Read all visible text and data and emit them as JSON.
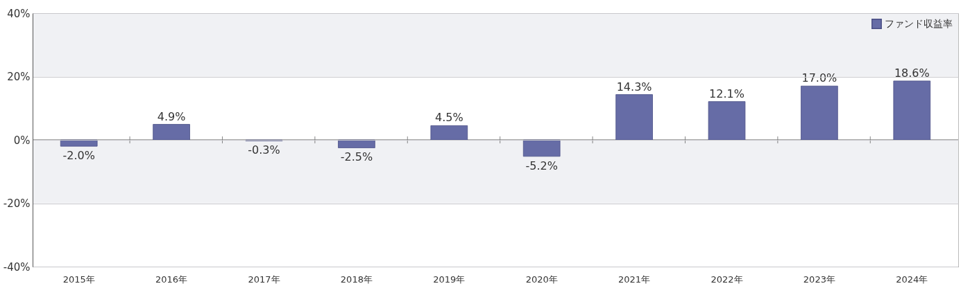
{
  "chart_data": {
    "type": "bar",
    "categories": [
      "2015年",
      "2016年",
      "2017年",
      "2018年",
      "2019年",
      "2020年",
      "2021年",
      "2022年",
      "2023年",
      "2024年"
    ],
    "series": [
      {
        "name": "ファンド収益率",
        "color": "#666ca6",
        "values": [
          -2.0,
          4.9,
          -0.3,
          -2.5,
          4.5,
          -5.2,
          14.3,
          12.1,
          17.0,
          18.6
        ]
      }
    ],
    "value_labels": [
      "-2.0%",
      "4.9%",
      "-0.3%",
      "-2.5%",
      "4.5%",
      "-5.2%",
      "14.3%",
      "12.1%",
      "17.0%",
      "18.6%"
    ],
    "ylim": [
      -40,
      40
    ],
    "yticks": [
      {
        "value": -40,
        "label": "-40%"
      },
      {
        "value": -20,
        "label": "-20%"
      },
      {
        "value": 0,
        "label": "0%"
      },
      {
        "value": 20,
        "label": "20%"
      },
      {
        "value": 40,
        "label": "40%"
      }
    ],
    "bands": [
      {
        "axis": "y",
        "from": 20,
        "to": 40,
        "color": "#f0f1f4"
      },
      {
        "axis": "y",
        "from": -20,
        "to": 0,
        "color": "#f0f1f4"
      }
    ],
    "grid": "y",
    "legend": "top right"
  }
}
